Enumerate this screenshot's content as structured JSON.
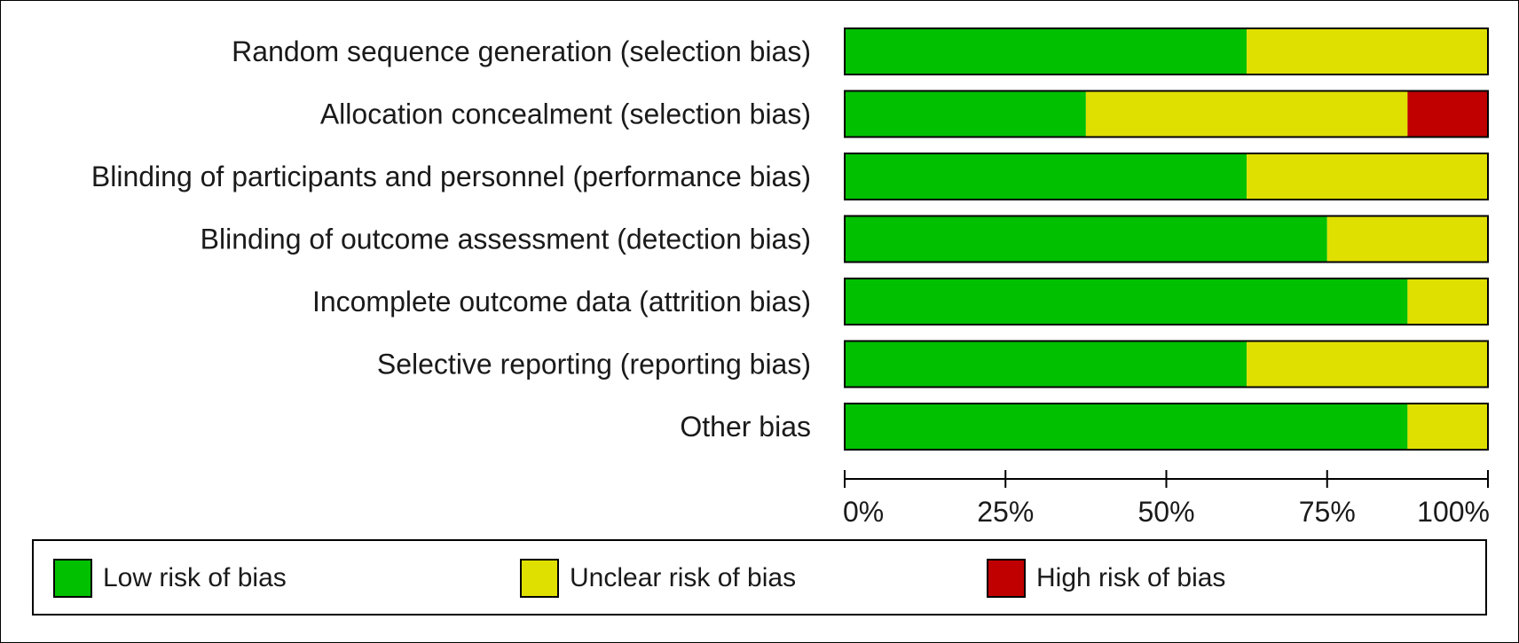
{
  "chart_data": {
    "type": "bar",
    "orientation": "horizontal",
    "stacked": true,
    "categories": [
      "Random sequence generation (selection bias)",
      "Allocation concealment (selection bias)",
      "Blinding of participants and personnel (performance bias)",
      "Blinding of outcome assessment (detection bias)",
      "Incomplete outcome data (attrition bias)",
      "Selective reporting (reporting bias)",
      "Other bias"
    ],
    "series": [
      {
        "name": "Low risk of bias",
        "color": "#00c000",
        "values": [
          62.5,
          37.5,
          62.5,
          75,
          87.5,
          62.5,
          87.5
        ]
      },
      {
        "name": "Unclear risk of bias",
        "color": "#e0e000",
        "values": [
          37.5,
          50,
          37.5,
          25,
          12.5,
          37.5,
          12.5
        ]
      },
      {
        "name": "High risk of bias",
        "color": "#c00000",
        "values": [
          0,
          12.5,
          0,
          0,
          0,
          0,
          0
        ]
      }
    ],
    "xlim": [
      0,
      100
    ],
    "xticks": [
      0,
      25,
      50,
      75,
      100
    ],
    "xticklabels": [
      "0%",
      "25%",
      "50%",
      "75%",
      "100%"
    ],
    "legend_position": "bottom"
  },
  "legend": {
    "items": [
      {
        "label": "Low risk of bias",
        "color": "#00c000"
      },
      {
        "label": "Unclear risk of bias",
        "color": "#e0e000"
      },
      {
        "label": "High risk of bias",
        "color": "#c00000"
      }
    ]
  }
}
